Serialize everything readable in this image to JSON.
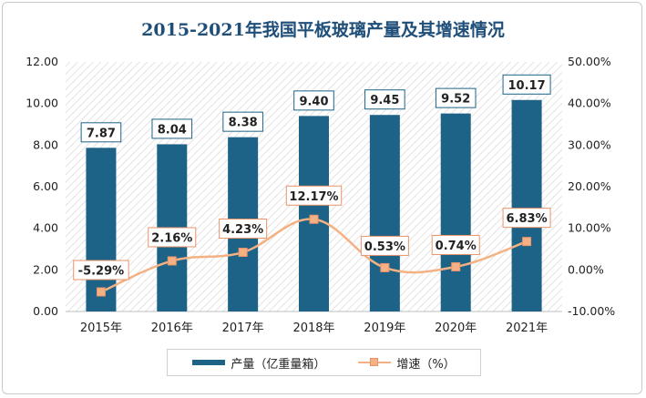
{
  "chart_data": {
    "type": "bar",
    "title": "2015-2021年我国平板玻璃产量及其增速情况",
    "categories": [
      "2015年",
      "2016年",
      "2017年",
      "2018年",
      "2019年",
      "2020年",
      "2021年"
    ],
    "series": [
      {
        "name": "产量（亿重量箱）",
        "type": "bar",
        "axis": "left",
        "values": [
          7.87,
          8.04,
          8.38,
          9.4,
          9.45,
          9.52,
          10.17
        ],
        "labels": [
          "7.87",
          "8.04",
          "8.38",
          "9.40",
          "9.45",
          "9.52",
          "10.17"
        ]
      },
      {
        "name": "增速（%）",
        "type": "line",
        "axis": "right",
        "values": [
          -5.29,
          2.16,
          4.23,
          12.17,
          0.53,
          0.74,
          6.83
        ],
        "labels": [
          "-5.29%",
          "2.16%",
          "4.23%",
          "12.17%",
          "0.53%",
          "0.74%",
          "6.83%"
        ]
      }
    ],
    "y_left": {
      "min": 0,
      "max": 12,
      "ticks": [
        "0.00",
        "2.00",
        "4.00",
        "6.00",
        "8.00",
        "10.00",
        "12.00"
      ]
    },
    "y_right": {
      "min": -10,
      "max": 50,
      "ticks": [
        "-10.00%",
        "0.00%",
        "10.00%",
        "20.00%",
        "30.00%",
        "40.00%",
        "50.00%"
      ]
    },
    "legend_position": "bottom",
    "grid": false,
    "colors": {
      "bar": "#1c6387",
      "line": "#f4b183",
      "title": "#1f4e79",
      "label_border_bar": "#1c6387",
      "label_border_line": "#e9936a"
    }
  }
}
